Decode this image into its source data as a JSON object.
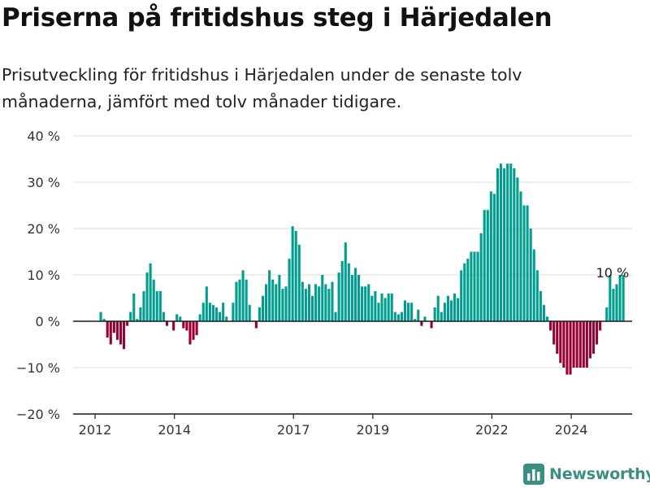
{
  "title": "Priserna på fritidshus steg i Härjedalen",
  "subtitle": "Prisutveckling för fritidshus i Härjedalen under de senaste tolv månaderna, jämfört med tolv månader tidigare.",
  "brand": {
    "name": "Newsworthy",
    "icon": "bar-chart-logo-icon",
    "color": "#3a8f82"
  },
  "chart_data": {
    "type": "bar",
    "title": "Priserna på fritidshus steg i Härjedalen",
    "xlabel": "",
    "ylabel": "",
    "ylim": [
      -20,
      40
    ],
    "yticks": [
      -20,
      -10,
      0,
      10,
      20,
      30,
      40
    ],
    "ytick_labels": [
      "−20 %",
      "−10 %",
      "0 %",
      "10 %",
      "20 %",
      "30 %",
      "40 %"
    ],
    "x_ticks": [
      {
        "label": "2012",
        "index": 0
      },
      {
        "label": "2014",
        "index": 24
      },
      {
        "label": "2017",
        "index": 60
      },
      {
        "label": "2019",
        "index": 84
      },
      {
        "label": "2022",
        "index": 120
      },
      {
        "label": "2024",
        "index": 144
      }
    ],
    "grid": true,
    "positive_color": "#009e8f",
    "negative_color": "#990033",
    "annotation": {
      "text": "10 %",
      "index": 156
    },
    "values": [
      0,
      2,
      0.5,
      -3.5,
      -5,
      -2.5,
      -4,
      -5,
      -6,
      -1,
      2,
      6,
      0.5,
      3,
      6.5,
      10.5,
      12.5,
      9,
      6.5,
      6.5,
      2,
      -1,
      0,
      -2,
      1.5,
      1,
      -1.5,
      -2,
      -5,
      -4,
      -3,
      1.5,
      4,
      7.5,
      4,
      3.5,
      3,
      2,
      4,
      1,
      0,
      4,
      8.5,
      9,
      11,
      9,
      3.5,
      0,
      -1.5,
      3,
      5.5,
      8,
      11,
      9,
      8,
      10,
      7,
      7.5,
      13.5,
      20.5,
      19.5,
      16.5,
      8.5,
      7,
      8,
      5.5,
      8,
      7.5,
      10,
      8,
      7,
      8.5,
      2,
      10.5,
      13,
      17,
      12.5,
      10,
      11.5,
      10,
      7.5,
      7.5,
      8,
      5.5,
      6.5,
      4,
      6,
      5,
      6,
      6,
      2,
      1.5,
      2,
      4.5,
      4,
      4,
      0.5,
      2.5,
      -1,
      1,
      0,
      -1.5,
      3,
      5.5,
      2,
      4,
      5.5,
      4.5,
      6,
      5,
      11,
      12.5,
      13.5,
      15,
      15,
      15,
      19,
      24,
      24,
      28,
      27.5,
      33,
      34,
      33,
      34,
      34,
      33,
      31,
      28,
      25,
      25,
      20,
      15.5,
      11,
      6.5,
      3.5,
      1,
      -2,
      -5,
      -7,
      -9,
      -10,
      -11.5,
      -11.5,
      -10,
      -10,
      -10,
      -10,
      -10,
      -8,
      -7,
      -5,
      -2,
      0,
      3,
      10,
      7,
      8,
      10,
      10
    ]
  }
}
